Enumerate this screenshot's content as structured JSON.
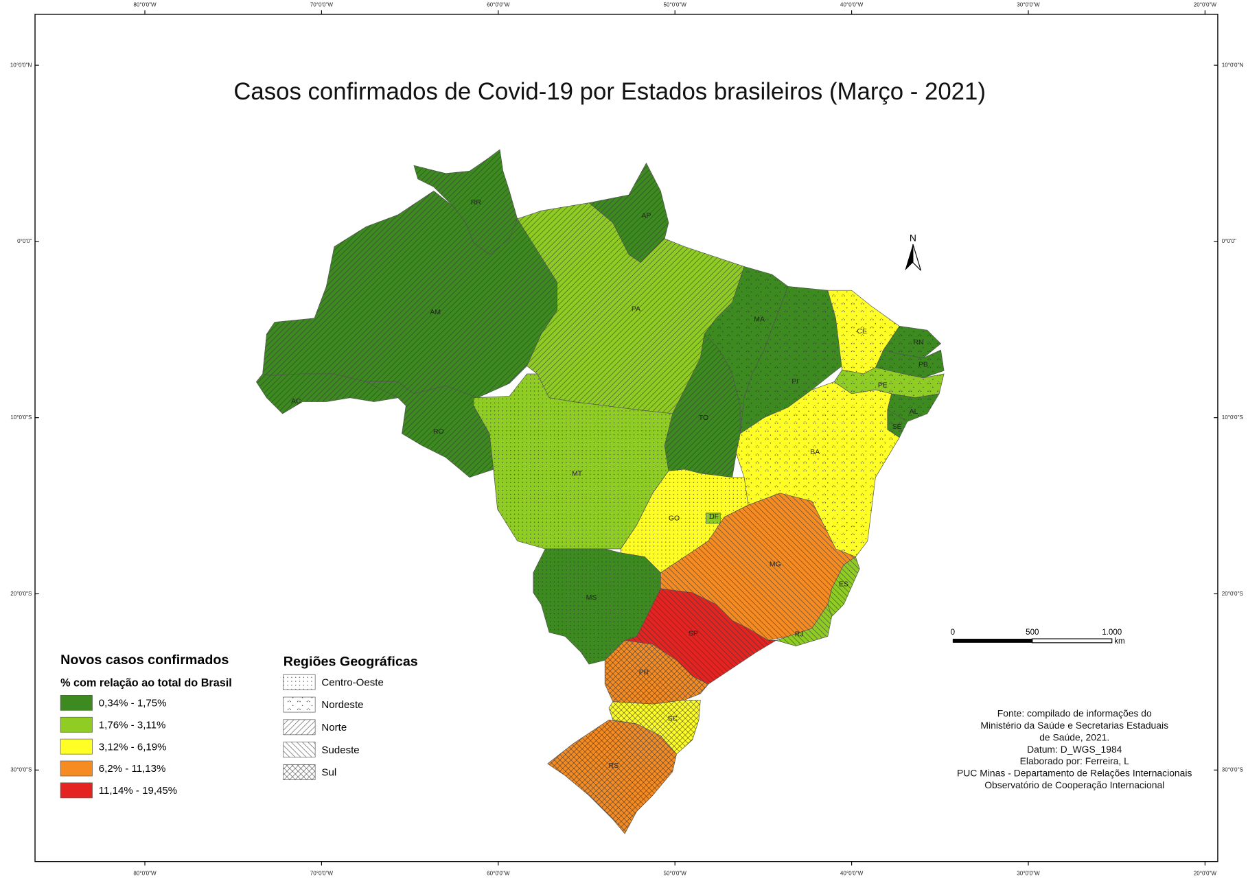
{
  "title": "Casos confirmados de Covid-19 por Estados brasileiros (Março - 2021)",
  "graticule": {
    "longitudes": [
      "80°0'0\"W",
      "70°0'0\"W",
      "60°0'0\"W",
      "50°0'0\"W",
      "40°0'0\"W",
      "30°0'0\"W",
      "20°0'0\"W"
    ],
    "latitudes": [
      "10°0'0\"N",
      "0°0'0\"",
      "10°0'0\"S",
      "20°0'0\"S",
      "30°0'0\"S"
    ]
  },
  "north_arrow": "N",
  "scale_bar": {
    "labels": [
      "0",
      "500",
      "1.000"
    ],
    "unit": "km"
  },
  "legend": {
    "title": "Novos casos confirmados",
    "subtitle": "% com relação ao total do Brasil",
    "classes": [
      {
        "label": "0,34% - 1,75%",
        "color": "#3c8a20"
      },
      {
        "label": "1,76% - 3,11%",
        "color": "#8fcc24"
      },
      {
        "label": "3,12% - 6,19%",
        "color": "#ffff26"
      },
      {
        "label": "6,2% - 11,13%",
        "color": "#f68b22"
      },
      {
        "label": "11,14% - 19,45%",
        "color": "#e52320"
      }
    ]
  },
  "regions": {
    "title": "Regiões Geográficas",
    "items": [
      {
        "label": "Centro-Oeste",
        "pattern": "dots"
      },
      {
        "label": "Nordeste",
        "pattern": "triangles"
      },
      {
        "label": "Norte",
        "pattern": "diag-up"
      },
      {
        "label": "Sudeste",
        "pattern": "diag-down"
      },
      {
        "label": "Sul",
        "pattern": "cross"
      }
    ]
  },
  "states": [
    {
      "label": "RR",
      "color": "#3c8a20",
      "pattern": "diag-up"
    },
    {
      "label": "AM",
      "color": "#3c8a20",
      "pattern": "diag-up"
    },
    {
      "label": "AC",
      "color": "#3c8a20",
      "pattern": "diag-up"
    },
    {
      "label": "RO",
      "color": "#3c8a20",
      "pattern": "diag-up"
    },
    {
      "label": "AP",
      "color": "#3c8a20",
      "pattern": "diag-up"
    },
    {
      "label": "PA",
      "color": "#8fcc24",
      "pattern": "diag-up"
    },
    {
      "label": "TO",
      "color": "#3c8a20",
      "pattern": "diag-up"
    },
    {
      "label": "MT",
      "color": "#8fcc24",
      "pattern": "dots"
    },
    {
      "label": "MA",
      "color": "#3c8a20",
      "pattern": "triangles"
    },
    {
      "label": "PI",
      "color": "#3c8a20",
      "pattern": "triangles"
    },
    {
      "label": "CE",
      "color": "#ffff26",
      "pattern": "triangles"
    },
    {
      "label": "RN",
      "color": "#3c8a20",
      "pattern": "triangles"
    },
    {
      "label": "PB",
      "color": "#3c8a20",
      "pattern": "triangles"
    },
    {
      "label": "PE",
      "color": "#8fcc24",
      "pattern": "triangles"
    },
    {
      "label": "AL",
      "color": "#3c8a20",
      "pattern": "triangles"
    },
    {
      "label": "SE",
      "color": "#3c8a20",
      "pattern": "triangles"
    },
    {
      "label": "BA",
      "color": "#ffff26",
      "pattern": "triangles"
    },
    {
      "label": "GO",
      "color": "#ffff26",
      "pattern": "dots"
    },
    {
      "label": "DF",
      "color": "#8fcc24",
      "pattern": "dots"
    },
    {
      "label": "MS",
      "color": "#3c8a20",
      "pattern": "dots"
    },
    {
      "label": "MG",
      "color": "#f68b22",
      "pattern": "diag-down"
    },
    {
      "label": "ES",
      "color": "#8fcc24",
      "pattern": "diag-down"
    },
    {
      "label": "RJ",
      "color": "#8fcc24",
      "pattern": "diag-down"
    },
    {
      "label": "SP",
      "color": "#e52320",
      "pattern": "diag-down"
    },
    {
      "label": "PR",
      "color": "#f68b22",
      "pattern": "cross"
    },
    {
      "label": "SC",
      "color": "#ffff26",
      "pattern": "cross"
    },
    {
      "label": "RS",
      "color": "#f68b22",
      "pattern": "cross"
    }
  ],
  "source": [
    "Fonte: compilado de informações do",
    "Ministério da Saúde e Secretarias Estaduais",
    "de Saúde, 2021.",
    "Datum: D_WGS_1984",
    "Elaborado por: Ferreira, L",
    "PUC Minas - Departamento de Relações Internacionais",
    "Observatório de Cooperação Internacional"
  ]
}
